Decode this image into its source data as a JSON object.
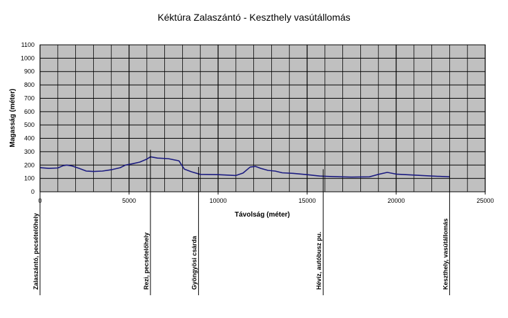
{
  "chart_data": {
    "type": "line",
    "title": "Kéktúra Zalaszántó - Keszthely vasútállomás",
    "xlabel": "Távolság (méter)",
    "ylabel": "Magasság (méter)",
    "xlim": [
      0,
      25000
    ],
    "ylim": [
      0,
      1100
    ],
    "x_ticks": [
      0,
      5000,
      10000,
      15000,
      20000,
      25000
    ],
    "y_ticks": [
      0,
      100,
      200,
      300,
      400,
      500,
      600,
      700,
      800,
      900,
      1000,
      1100
    ],
    "grid": true,
    "legend": "none",
    "colors": {
      "line": "#1a1a80",
      "plot_bg": "#c0c0c0",
      "grid": "#000000"
    },
    "series": [
      {
        "x": [
          0,
          500,
          1000,
          1300,
          1500,
          1800,
          2200,
          2600,
          3000,
          3500,
          4000,
          4500,
          4800,
          5200,
          5600,
          6000,
          6200,
          6600,
          7200,
          7800,
          8100,
          8500,
          9000,
          10000,
          11000,
          11400,
          11800,
          12100,
          12400,
          12800,
          13200,
          13600,
          14200,
          15000,
          15700,
          16500,
          17500,
          18500,
          19000,
          19500,
          20000,
          21000,
          22000,
          23000
        ],
        "y": [
          180,
          175,
          178,
          195,
          200,
          193,
          175,
          155,
          152,
          155,
          165,
          180,
          200,
          210,
          222,
          245,
          262,
          252,
          248,
          232,
          170,
          150,
          130,
          128,
          122,
          140,
          185,
          190,
          175,
          160,
          155,
          142,
          138,
          128,
          118,
          113,
          110,
          112,
          130,
          145,
          132,
          125,
          118,
          112
        ]
      }
    ],
    "places": [
      {
        "label": "Zalaszántó, pecsételőhely",
        "x": 0
      },
      {
        "label": "Rezi, pecsételőhely",
        "x": 6200
      },
      {
        "label": "Gyöngyösi csárda",
        "x": 8900
      },
      {
        "label": "Hévíz, autóbusz pu.",
        "x": 15900
      },
      {
        "label": "Keszthely, vasútállomás",
        "x": 23000
      }
    ]
  }
}
